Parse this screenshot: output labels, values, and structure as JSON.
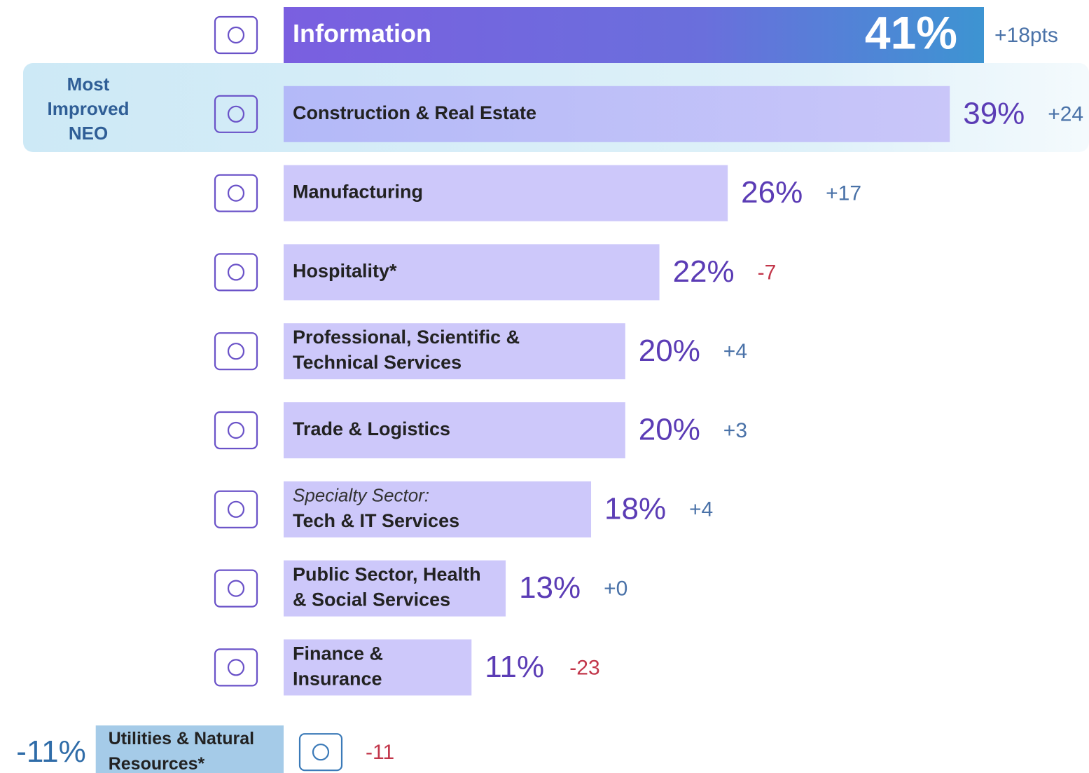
{
  "chart_data": {
    "type": "bar",
    "categories": [
      "Information",
      "Construction & Real Estate",
      "Manufacturing",
      "Hospitality*",
      "Professional, Scientific &\nTechnical Services",
      "Trade & Logistics",
      "Tech & IT Services",
      "Public Sector, Health\n& Social Services",
      "Finance &\nInsurance",
      "Utilities & Natural\nResources*"
    ],
    "subheads": [
      null,
      null,
      null,
      null,
      null,
      null,
      "Specialty Sector:",
      null,
      null,
      null
    ],
    "values": [
      41,
      39,
      26,
      22,
      20,
      20,
      18,
      13,
      11,
      -11
    ],
    "value_labels": [
      "41%",
      "39%",
      "26%",
      "22%",
      "20%",
      "20%",
      "18%",
      "13%",
      "11%",
      "-11%"
    ],
    "changes": [
      18,
      24,
      17,
      -7,
      4,
      3,
      4,
      0,
      -23,
      -11
    ],
    "change_labels": [
      "+18pts",
      "+24",
      "+17",
      "-7",
      "+4",
      "+3",
      "+4",
      "+0",
      "-23",
      "-11"
    ],
    "annotation": "Most\nImproved\nNEO",
    "color": "#cdc8fa",
    "negative_color": "#a5cbe8"
  }
}
